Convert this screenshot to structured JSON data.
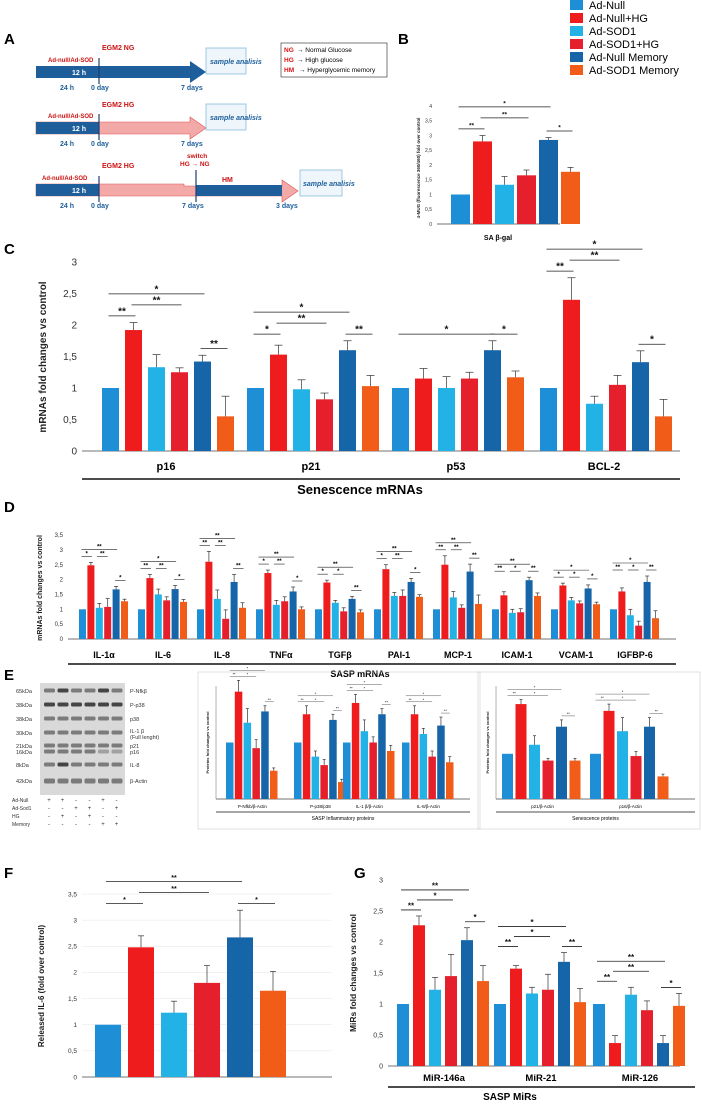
{
  "legend": [
    {
      "label": "Ad-Null",
      "color": "#1e8fd6"
    },
    {
      "label": "Ad-Null+HG",
      "color": "#ee1c1c"
    },
    {
      "label": "Ad-SOD1",
      "color": "#22b2e6"
    },
    {
      "label": "Ad-SOD1+HG",
      "color": "#e51f2b"
    },
    {
      "label": "Ad-Null Memory",
      "color": "#1565a8"
    },
    {
      "label": "Ad-SOD1 Memory",
      "color": "#f25c19"
    }
  ],
  "colors": [
    "#1e8fd6",
    "#ee1c1c",
    "#22b2e6",
    "#e51f2b",
    "#1565a8",
    "#f25c19"
  ],
  "panels": {
    "A": "A",
    "B": "B",
    "C": "C",
    "D": "D",
    "E": "E",
    "F": "F",
    "G": "G"
  },
  "schemeA": {
    "box": {
      "ng": "NG",
      "ng_t": "→ Normal Glucose",
      "hg": "HG",
      "hg_t": "→ High glucose",
      "hm": "HM",
      "hm_t": "→ Hyperglycemic memory"
    },
    "rows": [
      {
        "tag": "Ad-null/Ad-SOD",
        "hours": "12 h",
        "h24": "24 h",
        "day0": "0 day",
        "medium": "EGM2 NG",
        "end": "7 days",
        "sample": "sample analisis"
      },
      {
        "tag": "Ad-null/Ad-SOD",
        "hours": "12 h",
        "h24": "24 h",
        "day0": "0 day",
        "medium": "EGM2 HG",
        "end": "7 days",
        "sample": "sample analisis"
      },
      {
        "tag": "Ad-null/Ad-SOD",
        "hours": "12 h",
        "h24": "24 h",
        "day0": "0 day",
        "medium": "EGM2 HG",
        "mid": "7 days",
        "switch": "switch",
        "switch2": "HG → NG",
        "hm": "HM",
        "end": "3 days",
        "sample": "sample analisis"
      }
    ]
  },
  "chart_data": [
    {
      "id": "B",
      "type": "bar",
      "title": "",
      "xlabel": "SA β-gal",
      "ylabel": "4-MUG (fluorescence 360/460) fold over control",
      "ylim": [
        0,
        4
      ],
      "yticks": [
        "0",
        "0,5",
        "1",
        "1,5",
        "2",
        "2,5",
        "3",
        "3,5",
        "4"
      ],
      "values": [
        1.0,
        2.8,
        1.33,
        1.65,
        2.85,
        1.77
      ],
      "errors": [
        0,
        0.2,
        0.28,
        0.18,
        0.08,
        0.15
      ],
      "sig": [
        {
          "from": 0,
          "to": 1,
          "label": "**"
        },
        {
          "from": 1,
          "to": 3,
          "label": "**"
        },
        {
          "from": 0,
          "to": 4,
          "label": "*"
        },
        {
          "from": 4,
          "to": 5,
          "label": "*"
        }
      ]
    },
    {
      "id": "C",
      "type": "bar",
      "xlabel": "Senescence mRNAs",
      "ylabel": "mRNAs fold changes vs control",
      "ylim": [
        0,
        3
      ],
      "yticks": [
        "0",
        "0,5",
        "1",
        "1,5",
        "2",
        "2,5",
        "3"
      ],
      "categories": [
        "p16",
        "p21",
        "p53",
        "BCL-2"
      ],
      "values": [
        [
          1.0,
          1.92,
          1.33,
          1.25,
          1.42,
          0.55
        ],
        [
          1.0,
          1.53,
          0.98,
          0.82,
          1.6,
          1.03
        ],
        [
          1.0,
          1.15,
          1.0,
          1.15,
          1.6,
          1.17
        ],
        [
          1.0,
          2.4,
          0.75,
          1.05,
          1.41,
          0.55
        ]
      ],
      "errors": [
        [
          0,
          0.12,
          0.2,
          0.07,
          0.1,
          0.32
        ],
        [
          0,
          0.15,
          0.15,
          0.1,
          0.15,
          0.17
        ],
        [
          0,
          0.16,
          0.18,
          0.1,
          0.15,
          0.1
        ],
        [
          0,
          0.35,
          0.12,
          0.15,
          0.18,
          0.27
        ]
      ],
      "sig": [
        [
          {
            "from": 0,
            "to": 1,
            "label": "**"
          },
          {
            "from": 1,
            "to": 3,
            "label": "**"
          },
          {
            "from": 0,
            "to": 4,
            "label": "*"
          },
          {
            "from": 4,
            "to": 5,
            "label": "**"
          }
        ],
        [
          {
            "from": 0,
            "to": 1,
            "label": "*"
          },
          {
            "from": 1,
            "to": 3,
            "label": "**"
          },
          {
            "from": 0,
            "to": 4,
            "label": "*"
          },
          {
            "from": 4,
            "to": 5,
            "label": "**"
          }
        ],
        [
          {
            "from": 0,
            "to": 4,
            "label": "*"
          },
          {
            "from": 4,
            "to": 5,
            "label": "*"
          }
        ],
        [
          {
            "from": 0,
            "to": 1,
            "label": "**"
          },
          {
            "from": 1,
            "to": 3,
            "label": "**"
          },
          {
            "from": 0,
            "to": 4,
            "label": "*"
          },
          {
            "from": 4,
            "to": 5,
            "label": "*"
          }
        ]
      ]
    },
    {
      "id": "D",
      "type": "bar",
      "xlabel": "SASP mRNAs",
      "ylabel": "mRNAs fold changes vs control",
      "ylim": [
        0,
        3.5
      ],
      "yticks": [
        "0",
        "0,5",
        "1",
        "1,5",
        "2",
        "2,5",
        "3",
        "3,5"
      ],
      "categories": [
        "IL-1α",
        "IL-6",
        "IL-8",
        "TNFα",
        "TGFβ",
        "PAI-1",
        "MCP-1",
        "ICAM-1",
        "VCAM-1",
        "IGFBP-6"
      ],
      "values": [
        [
          1,
          2.48,
          1.05,
          1.08,
          1.67,
          1.27
        ],
        [
          1,
          2.05,
          1.5,
          1.3,
          1.68,
          1.25
        ],
        [
          1,
          2.6,
          1.35,
          0.68,
          1.92,
          1.05
        ],
        [
          1,
          2.22,
          1.15,
          1.27,
          1.6,
          1.0
        ],
        [
          1,
          1.9,
          1.22,
          0.93,
          1.35,
          0.9
        ],
        [
          1,
          2.35,
          1.45,
          1.45,
          1.92,
          1.42
        ],
        [
          1,
          2.5,
          1.4,
          1.05,
          2.27,
          1.18
        ],
        [
          1,
          1.47,
          0.88,
          0.9,
          1.98,
          1.45
        ],
        [
          1,
          1.8,
          1.3,
          1.2,
          1.7,
          1.17
        ],
        [
          1,
          1.6,
          0.8,
          0.45,
          1.92,
          0.7
        ]
      ],
      "errors": [
        [
          0,
          0.1,
          0.15,
          0.28,
          0.1,
          0.07
        ],
        [
          0,
          0.12,
          0.18,
          0.12,
          0.12,
          0.08
        ],
        [
          0,
          0.35,
          0.3,
          0.3,
          0.25,
          0.17
        ],
        [
          0,
          0.1,
          0.15,
          0.15,
          0.15,
          0.08
        ],
        [
          0,
          0.08,
          0.08,
          0.12,
          0.08,
          0.08
        ],
        [
          0,
          0.15,
          0.12,
          0.2,
          0.12,
          0.07
        ],
        [
          0,
          0.3,
          0.2,
          0.1,
          0.25,
          0.3
        ],
        [
          0,
          0.12,
          0.12,
          0.12,
          0.1,
          0.1
        ],
        [
          0,
          0.08,
          0.1,
          0.08,
          0.12,
          0.07
        ],
        [
          0,
          0.12,
          0.2,
          0.15,
          0.2,
          0.25
        ]
      ],
      "sig": [
        [
          [
            "*"
          ],
          [
            "**"
          ],
          [
            "**"
          ],
          [
            "*"
          ]
        ],
        [
          [
            "**"
          ],
          [
            "**"
          ],
          [
            "*"
          ],
          [
            "*"
          ]
        ],
        [
          [
            "**"
          ],
          [
            "**"
          ],
          [
            "**"
          ],
          [
            "**"
          ]
        ],
        [
          [
            "*"
          ],
          [
            "**"
          ],
          [
            "**"
          ],
          [
            "*"
          ]
        ],
        [
          [
            "*"
          ],
          [
            "*"
          ],
          [
            "**"
          ],
          [
            "**"
          ]
        ],
        [
          [
            "*"
          ],
          [
            "**"
          ],
          [
            "**"
          ],
          [
            "*"
          ]
        ],
        [
          [
            "**"
          ],
          [
            "**"
          ],
          [
            "**"
          ],
          [
            "**"
          ]
        ],
        [
          [
            "**"
          ],
          [
            "*"
          ],
          [
            "**"
          ],
          [
            "**"
          ]
        ],
        [
          [
            "*"
          ],
          [
            "*"
          ],
          [
            "*"
          ],
          [
            "*"
          ]
        ],
        [
          [
            "**"
          ],
          [
            "*"
          ],
          [
            "*"
          ],
          [
            "**"
          ]
        ]
      ]
    },
    {
      "id": "E1",
      "type": "bar",
      "xlabel": "SASP Inflammatory proteins",
      "ylabel": "Proteins fold changes vs control",
      "ylim": [
        0,
        2
      ],
      "categories": [
        "P-Nfkb/β-Actin",
        "P-p38/p38",
        "IL-1 β/β-Actin",
        "IL-8/β-Actin"
      ],
      "values": [
        [
          1,
          1.9,
          1.35,
          0.9,
          1.55,
          0.5
        ],
        [
          1,
          1.5,
          0.75,
          0.6,
          1.4,
          0.3
        ],
        [
          1,
          1.7,
          1.2,
          1.0,
          1.5,
          0.85
        ],
        [
          1,
          1.5,
          1.15,
          0.75,
          1.3,
          0.65
        ]
      ],
      "errors": [
        [
          0,
          0.2,
          0.25,
          0.15,
          0.1,
          0.05
        ],
        [
          0,
          0.15,
          0.1,
          0.1,
          0.1,
          0.05
        ],
        [
          0,
          0.15,
          0.2,
          0.1,
          0.1,
          0.1
        ],
        [
          0,
          0.15,
          0.1,
          0.1,
          0.15,
          0.1
        ]
      ]
    },
    {
      "id": "E2",
      "type": "bar",
      "xlabel": "Senescence proteins",
      "ylabel": "Proteins fold changes vs control",
      "ylim": [
        0,
        2.5
      ],
      "categories": [
        "p21/β-Actin",
        "p16/β-Actin"
      ],
      "values": [
        [
          1,
          2.1,
          1.2,
          0.85,
          1.6,
          0.85
        ],
        [
          1,
          1.95,
          1.5,
          0.95,
          1.6,
          0.5
        ]
      ],
      "errors": [
        [
          0,
          0.1,
          0.2,
          0.05,
          0.15,
          0.05
        ],
        [
          0,
          0.15,
          0.3,
          0.1,
          0.2,
          0.05
        ]
      ]
    },
    {
      "id": "F",
      "type": "bar",
      "xlabel": "",
      "ylabel": "Released IL-6 (fold over control)",
      "ylim": [
        0,
        3.5
      ],
      "yticks": [
        "0",
        "0,5",
        "1",
        "1,5",
        "2",
        "2,5",
        "3",
        "3,5"
      ],
      "values": [
        1.0,
        2.48,
        1.23,
        1.8,
        2.67,
        1.65
      ],
      "errors": [
        0,
        0.22,
        0.22,
        0.33,
        0.52,
        0.37
      ],
      "sig": [
        {
          "from": 0,
          "to": 1,
          "label": "*"
        },
        {
          "from": 1,
          "to": 3,
          "label": "**"
        },
        {
          "from": 0,
          "to": 4,
          "label": "**"
        },
        {
          "from": 4,
          "to": 5,
          "label": "*"
        }
      ]
    },
    {
      "id": "G",
      "type": "bar",
      "xlabel": "SASP MiRs",
      "ylabel": "MiRs fold changes vs control",
      "ylim": [
        0,
        3
      ],
      "yticks": [
        "0",
        "0,5",
        "1",
        "1,5",
        "2",
        "2,5",
        "3"
      ],
      "categories": [
        "MiR-146a",
        "MiR-21",
        "MiR-126"
      ],
      "values": [
        [
          1,
          2.27,
          1.23,
          1.45,
          2.03,
          1.37
        ],
        [
          1,
          1.57,
          1.17,
          1.23,
          1.68,
          1.03
        ],
        [
          1,
          0.37,
          1.15,
          0.9,
          0.37,
          0.97
        ]
      ],
      "errors": [
        [
          0,
          0.15,
          0.2,
          0.35,
          0.2,
          0.25
        ],
        [
          0,
          0.05,
          0.1,
          0.25,
          0.15,
          0.22
        ],
        [
          0,
          0.12,
          0.12,
          0.15,
          0.12,
          0.2
        ]
      ],
      "sig": [
        [
          {
            "from": 0,
            "to": 1,
            "label": "**"
          },
          {
            "from": 1,
            "to": 3,
            "label": "*"
          },
          {
            "from": 0,
            "to": 4,
            "label": "**"
          },
          {
            "from": 4,
            "to": 5,
            "label": "*"
          }
        ],
        [
          {
            "from": 0,
            "to": 1,
            "label": "**"
          },
          {
            "from": 1,
            "to": 3,
            "label": "*"
          },
          {
            "from": 0,
            "to": 4,
            "label": "*"
          },
          {
            "from": 4,
            "to": 5,
            "label": "**"
          }
        ],
        [
          {
            "from": 0,
            "to": 1,
            "label": "**"
          },
          {
            "from": 1,
            "to": 3,
            "label": "**"
          },
          {
            "from": 0,
            "to": 4,
            "label": "**"
          },
          {
            "from": 4,
            "to": 5,
            "label": "*"
          }
        ]
      ]
    }
  ],
  "westernE": {
    "kda": [
      "65kDa",
      "38kDa",
      "38kDa",
      "30kDa",
      "21kDa",
      "16kDa",
      "8kDa",
      "42kDa"
    ],
    "bands": [
      "P-Nfkβ",
      "P-p38",
      "p38",
      "IL-1 β",
      "(Full lenght)",
      "p21",
      "p16",
      "IL-8",
      "β-Actin"
    ],
    "rows": [
      {
        "label": "Ad-Null",
        "marks": [
          "+",
          "+",
          "-",
          "-",
          "+",
          "-"
        ]
      },
      {
        "label": "Ad-Sod1",
        "marks": [
          "-",
          "-",
          "+",
          "+",
          "-",
          "+"
        ]
      },
      {
        "label": "HG",
        "marks": [
          "-",
          "+",
          "-",
          "+",
          "-",
          "-"
        ]
      },
      {
        "label": "Memory",
        "marks": [
          "-",
          "-",
          "-",
          "-",
          "+",
          "+"
        ]
      }
    ]
  }
}
